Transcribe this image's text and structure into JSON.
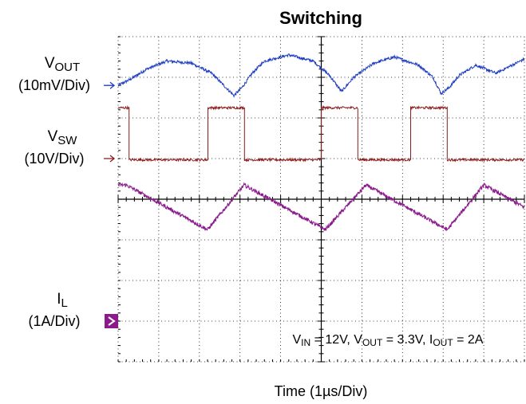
{
  "chart_data": {
    "type": "line",
    "title": "Switching",
    "xlabel": "Time (1µs/Div)",
    "grid": true,
    "x_divisions": 10,
    "y_divisions": 8,
    "xlim_div": [
      0,
      10
    ],
    "channels": [
      {
        "name": "V",
        "sub": "OUT",
        "scale": "(10mV/Div)",
        "marker": "hollow-arrow",
        "color": "#1f3fc0",
        "ground_div": 6.8
      },
      {
        "name": "V",
        "sub": "SW",
        "scale": "(10V/Div)",
        "marker": "hollow-arrow",
        "color": "#8b1a1a",
        "ground_div": 5.0
      },
      {
        "name": "I",
        "sub": "L",
        "scale": "(1A/Div)",
        "marker": "filled-box-arrow",
        "color": "#8b1a8b",
        "ground_div": 1.0
      }
    ],
    "series": [
      {
        "name": "VOUT",
        "color": "#1f3fc0",
        "x": [
          0,
          0.3,
          0.7,
          1.2,
          1.8,
          2.3,
          2.65,
          2.85,
          3.05,
          3.3,
          3.6,
          4.2,
          4.8,
          5.2,
          5.5,
          5.8,
          6.3,
          6.8,
          7.4,
          7.75,
          7.95,
          8.15,
          8.4,
          8.8,
          9.3,
          9.8,
          10
        ],
        "y": [
          6.8,
          6.95,
          7.2,
          7.4,
          7.35,
          7.1,
          6.75,
          6.55,
          6.75,
          7.1,
          7.4,
          7.55,
          7.4,
          7.05,
          6.65,
          7.0,
          7.35,
          7.5,
          7.3,
          7.0,
          6.6,
          6.75,
          7.05,
          7.3,
          7.1,
          7.35,
          7.45
        ]
      },
      {
        "name": "VSW",
        "color": "#8b1a1a",
        "x": [
          0,
          0.35,
          0.38,
          4.4,
          4.43,
          6.2,
          6.23,
          10
        ],
        "y": [
          6.2,
          6.2,
          5.0,
          5.0,
          6.25,
          6.25,
          5.0,
          5.0
        ],
        "pulses_div": [
          [
            0,
            0.36
          ],
          [
            4.42,
            6.22
          ],
          [
            10.0,
            11.8
          ],
          [
            14.4,
            16.2
          ]
        ],
        "high_div": 6.25,
        "low_div": 4.97
      },
      {
        "name": "IL",
        "color": "#8b1a8b",
        "x": [
          0,
          0.4,
          4.4,
          6.2,
          10
        ],
        "y": [
          4.35,
          4.35,
          3.25,
          4.35,
          3.25
        ],
        "ramp_points_div": [
          [
            0.4,
            4.35
          ],
          [
            4.4,
            3.25
          ],
          [
            6.2,
            4.35
          ],
          [
            10.2,
            3.25
          ],
          [
            12.2,
            4.35
          ],
          [
            16.2,
            3.25
          ],
          [
            18.0,
            4.35
          ],
          [
            20.0,
            3.8
          ]
        ]
      }
    ],
    "annotation": {
      "parts": [
        {
          "t": "V"
        },
        {
          "t": "IN",
          "sub": true
        },
        {
          "t": " = 12V, V"
        },
        {
          "t": "OUT",
          "sub": true
        },
        {
          "t": " = 3.3V, I"
        },
        {
          "t": "OUT",
          "sub": true
        },
        {
          "t": " = 2A"
        }
      ]
    }
  }
}
